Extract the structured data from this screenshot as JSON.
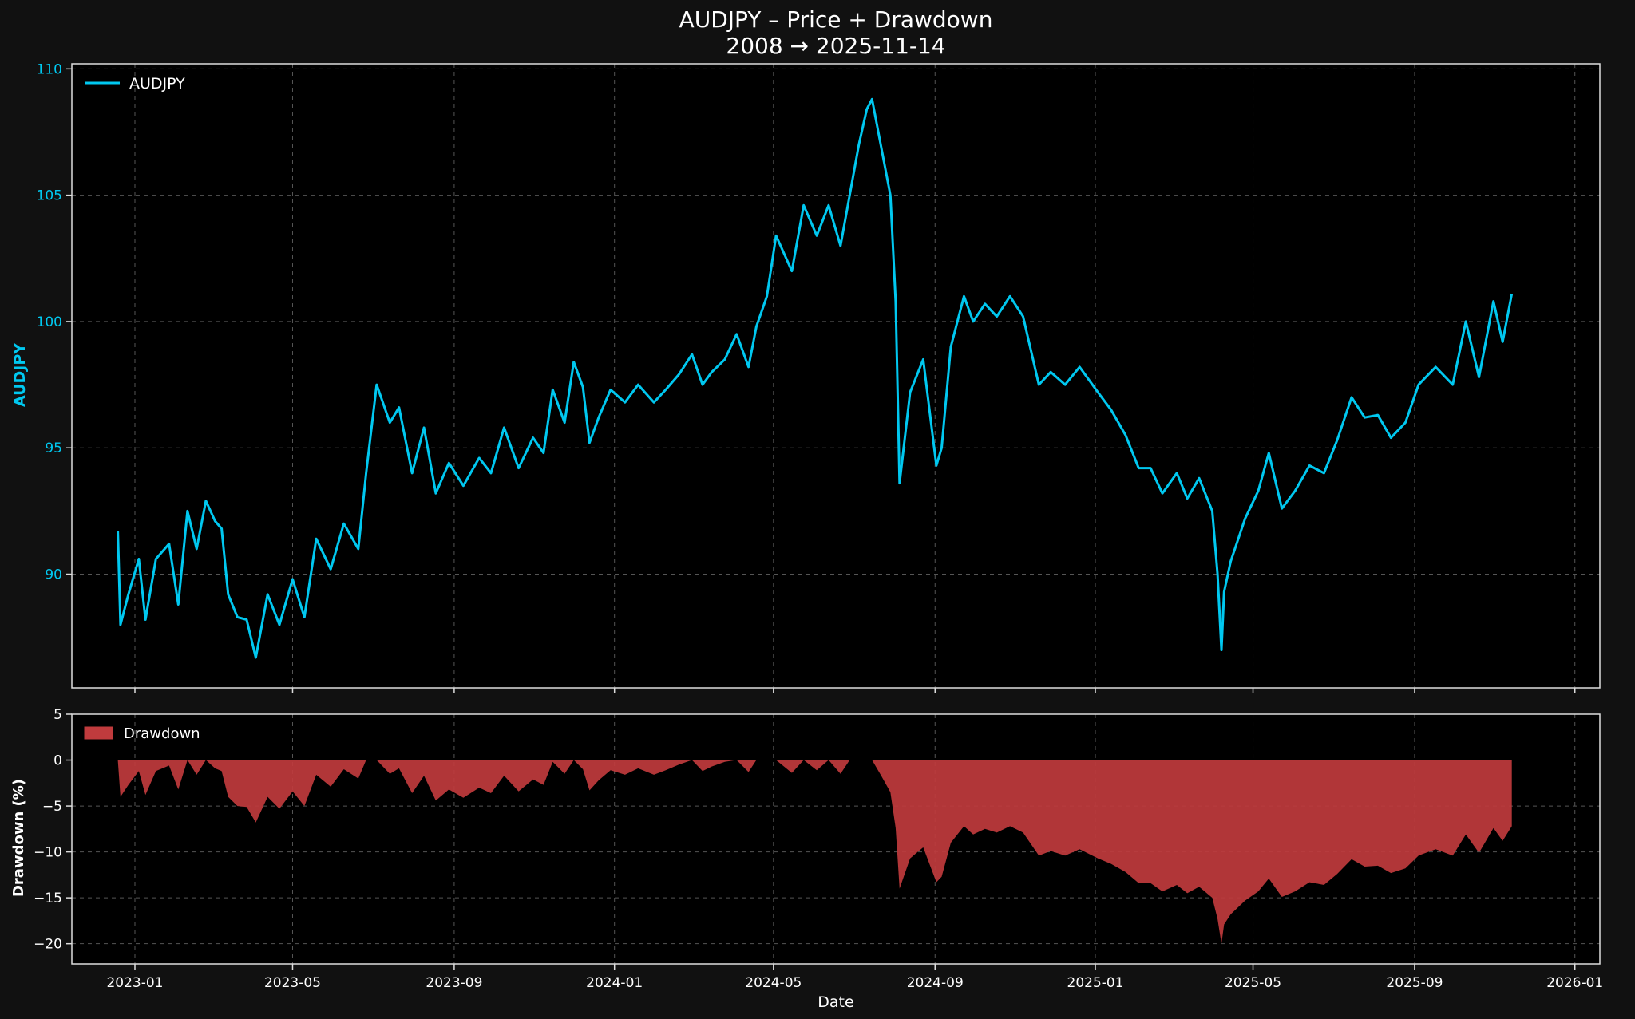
{
  "figure": {
    "title_line1": "AUDJPY – Price + Drawdown",
    "title_line2": "2008 → 2025-11-14",
    "background": "#111111",
    "axes_background": "#000000",
    "price_color": "#00c8f0",
    "drawdown_fill": "#c03b3d",
    "tick_text_color": "#ffffff",
    "grid": true
  },
  "chart_data": [
    {
      "type": "line",
      "title": "",
      "xlabel": "",
      "ylabel": "AUDJPY",
      "ylim": [
        85.5,
        110.2
      ],
      "yticks": [
        90,
        95,
        100,
        105,
        110
      ],
      "legend": {
        "entries": [
          "AUDJPY"
        ],
        "placement": "top-left"
      },
      "series": [
        {
          "name": "AUDJPY",
          "x": [
            "2022-12-19",
            "2022-12-21",
            "2022-12-27",
            "2023-01-04",
            "2023-01-09",
            "2023-01-17",
            "2023-01-27",
            "2023-02-03",
            "2023-02-10",
            "2023-02-17",
            "2023-02-24",
            "2023-03-03",
            "2023-03-08",
            "2023-03-13",
            "2023-03-20",
            "2023-03-27",
            "2023-04-03",
            "2023-04-12",
            "2023-04-21",
            "2023-05-01",
            "2023-05-10",
            "2023-05-19",
            "2023-05-30",
            "2023-06-09",
            "2023-06-20",
            "2023-06-26",
            "2023-07-04",
            "2023-07-14",
            "2023-07-21",
            "2023-07-31",
            "2023-08-09",
            "2023-08-18",
            "2023-08-28",
            "2023-09-08",
            "2023-09-20",
            "2023-09-29",
            "2023-10-09",
            "2023-10-20",
            "2023-10-31",
            "2023-11-08",
            "2023-11-15",
            "2023-11-24",
            "2023-12-01",
            "2023-12-08",
            "2023-12-13",
            "2023-12-20",
            "2023-12-29",
            "2024-01-09",
            "2024-01-19",
            "2024-01-31",
            "2024-02-09",
            "2024-02-19",
            "2024-02-29",
            "2024-03-08",
            "2024-03-15",
            "2024-03-25",
            "2024-04-03",
            "2024-04-12",
            "2024-04-18",
            "2024-04-26",
            "2024-05-03",
            "2024-05-15",
            "2024-05-24",
            "2024-06-03",
            "2024-06-12",
            "2024-06-21",
            "2024-06-28",
            "2024-07-05",
            "2024-07-11",
            "2024-07-15",
            "2024-07-22",
            "2024-07-29",
            "2024-08-02",
            "2024-08-05",
            "2024-08-13",
            "2024-08-23",
            "2024-09-02",
            "2024-09-06",
            "2024-09-13",
            "2024-09-23",
            "2024-09-30",
            "2024-10-09",
            "2024-10-18",
            "2024-10-28",
            "2024-11-07",
            "2024-11-19",
            "2024-11-28",
            "2024-12-09",
            "2024-12-20",
            "2025-01-03",
            "2025-01-13",
            "2025-01-24",
            "2025-02-03",
            "2025-02-12",
            "2025-02-21",
            "2025-03-04",
            "2025-03-12",
            "2025-03-21",
            "2025-03-31",
            "2025-04-04",
            "2025-04-07",
            "2025-04-09",
            "2025-04-14",
            "2025-04-25",
            "2025-05-05",
            "2025-05-13",
            "2025-05-23",
            "2025-06-02",
            "2025-06-13",
            "2025-06-24",
            "2025-07-04",
            "2025-07-15",
            "2025-07-25",
            "2025-08-04",
            "2025-08-14",
            "2025-08-25",
            "2025-09-04",
            "2025-09-17",
            "2025-09-30",
            "2025-10-10",
            "2025-10-20",
            "2025-10-31",
            "2025-11-07",
            "2025-11-14"
          ],
          "y": [
            91.7,
            88.0,
            89.2,
            90.6,
            88.2,
            90.6,
            91.2,
            88.8,
            92.5,
            91.0,
            92.9,
            92.1,
            91.8,
            89.2,
            88.3,
            88.2,
            86.7,
            89.2,
            88.0,
            89.8,
            88.3,
            91.4,
            90.2,
            92.0,
            91.0,
            94.0,
            97.5,
            96.0,
            96.6,
            94.0,
            95.8,
            93.2,
            94.4,
            93.5,
            94.6,
            94.0,
            95.8,
            94.2,
            95.4,
            94.8,
            97.3,
            96.0,
            98.4,
            97.4,
            95.2,
            96.2,
            97.3,
            96.8,
            97.5,
            96.8,
            97.3,
            97.9,
            98.7,
            97.5,
            98.0,
            98.5,
            99.5,
            98.2,
            99.8,
            101.0,
            103.4,
            102.0,
            104.6,
            103.4,
            104.6,
            103.0,
            105.0,
            107.0,
            108.4,
            108.8,
            106.9,
            105.0,
            100.8,
            93.6,
            97.2,
            98.5,
            94.3,
            95.0,
            99.0,
            101.0,
            100.0,
            100.7,
            100.2,
            101.0,
            100.2,
            97.5,
            98.0,
            97.5,
            98.2,
            97.2,
            96.5,
            95.5,
            94.2,
            94.2,
            93.2,
            94.0,
            93.0,
            93.8,
            92.5,
            90.0,
            87.0,
            89.3,
            90.5,
            92.2,
            93.3,
            94.8,
            92.6,
            93.3,
            94.3,
            94.0,
            95.3,
            97.0,
            96.2,
            96.3,
            95.4,
            96.0,
            97.5,
            98.2,
            97.5,
            100.0,
            97.8,
            100.8,
            99.2,
            101.1
          ]
        }
      ]
    },
    {
      "type": "area",
      "title": "",
      "xlabel": "Date",
      "ylabel": "Drawdown (%)",
      "ylim": [
        -22.2,
        5
      ],
      "yticks": [
        5,
        0,
        -5,
        -10,
        -15,
        -20
      ],
      "xticks": [
        "2023-01",
        "2023-05",
        "2023-09",
        "2024-01",
        "2024-05",
        "2024-09",
        "2025-01",
        "2025-05",
        "2025-09",
        "2026-01"
      ],
      "legend": {
        "entries": [
          "Drawdown"
        ],
        "placement": "top-left"
      },
      "series": [
        {
          "name": "Drawdown",
          "x": [
            "2022-12-19",
            "2022-12-21",
            "2022-12-27",
            "2023-01-04",
            "2023-01-09",
            "2023-01-17",
            "2023-01-27",
            "2023-02-03",
            "2023-02-10",
            "2023-02-17",
            "2023-02-24",
            "2023-03-03",
            "2023-03-08",
            "2023-03-13",
            "2023-03-20",
            "2023-03-27",
            "2023-04-03",
            "2023-04-12",
            "2023-04-21",
            "2023-05-01",
            "2023-05-10",
            "2023-05-19",
            "2023-05-30",
            "2023-06-09",
            "2023-06-20",
            "2023-06-26",
            "2023-07-04",
            "2023-07-14",
            "2023-07-21",
            "2023-07-31",
            "2023-08-09",
            "2023-08-18",
            "2023-08-28",
            "2023-09-08",
            "2023-09-20",
            "2023-09-29",
            "2023-10-09",
            "2023-10-20",
            "2023-10-31",
            "2023-11-08",
            "2023-11-15",
            "2023-11-24",
            "2023-12-01",
            "2023-12-08",
            "2023-12-13",
            "2023-12-20",
            "2023-12-29",
            "2024-01-09",
            "2024-01-19",
            "2024-01-31",
            "2024-02-09",
            "2024-02-19",
            "2024-02-29",
            "2024-03-08",
            "2024-03-15",
            "2024-03-25",
            "2024-04-03",
            "2024-04-12",
            "2024-04-18",
            "2024-04-26",
            "2024-05-03",
            "2024-05-15",
            "2024-05-24",
            "2024-06-03",
            "2024-06-12",
            "2024-06-21",
            "2024-06-28",
            "2024-07-05",
            "2024-07-11",
            "2024-07-15",
            "2024-07-22",
            "2024-07-29",
            "2024-08-02",
            "2024-08-05",
            "2024-08-13",
            "2024-08-23",
            "2024-09-02",
            "2024-09-06",
            "2024-09-13",
            "2024-09-23",
            "2024-09-30",
            "2024-10-09",
            "2024-10-18",
            "2024-10-28",
            "2024-11-07",
            "2024-11-19",
            "2024-11-28",
            "2024-12-09",
            "2024-12-20",
            "2025-01-03",
            "2025-01-13",
            "2025-01-24",
            "2025-02-03",
            "2025-02-12",
            "2025-02-21",
            "2025-03-04",
            "2025-03-12",
            "2025-03-21",
            "2025-03-31",
            "2025-04-04",
            "2025-04-07",
            "2025-04-09",
            "2025-04-14",
            "2025-04-25",
            "2025-05-05",
            "2025-05-13",
            "2025-05-23",
            "2025-06-02",
            "2025-06-13",
            "2025-06-24",
            "2025-07-04",
            "2025-07-15",
            "2025-07-25",
            "2025-08-04",
            "2025-08-14",
            "2025-08-25",
            "2025-09-04",
            "2025-09-17",
            "2025-09-30",
            "2025-10-10",
            "2025-10-20",
            "2025-10-31",
            "2025-11-07",
            "2025-11-14"
          ],
          "values": [
            0,
            -4.0,
            -2.7,
            -1.2,
            -3.8,
            -1.2,
            -0.6,
            -3.2,
            0,
            -1.6,
            0,
            -0.9,
            -1.2,
            -4.0,
            -5.0,
            -5.1,
            -6.8,
            -4.0,
            -5.3,
            -3.4,
            -5.0,
            -1.6,
            -2.9,
            -1.0,
            -2.0,
            0,
            0,
            -1.5,
            -0.9,
            -3.6,
            -1.7,
            -4.4,
            -3.2,
            -4.1,
            -3.0,
            -3.6,
            -1.7,
            -3.4,
            -2.1,
            -2.7,
            -0.2,
            -1.5,
            0,
            -1.0,
            -3.3,
            -2.2,
            -1.1,
            -1.6,
            -0.9,
            -1.6,
            -1.1,
            -0.5,
            0,
            -1.2,
            -0.7,
            -0.2,
            0,
            -1.3,
            0,
            0,
            0,
            -1.4,
            0,
            -1.1,
            0,
            -1.5,
            0,
            0,
            0,
            0,
            -1.7,
            -3.5,
            -7.4,
            -14.0,
            -10.7,
            -9.5,
            -13.3,
            -12.7,
            -9.0,
            -7.2,
            -8.1,
            -7.5,
            -7.9,
            -7.2,
            -7.9,
            -10.4,
            -9.9,
            -10.4,
            -9.7,
            -10.7,
            -11.3,
            -12.2,
            -13.4,
            -13.4,
            -14.3,
            -13.6,
            -14.5,
            -13.8,
            -15.0,
            -17.3,
            -20.0,
            -17.9,
            -16.8,
            -15.3,
            -14.3,
            -12.9,
            -14.9,
            -14.3,
            -13.3,
            -13.6,
            -12.4,
            -10.8,
            -11.6,
            -11.5,
            -12.3,
            -11.8,
            -10.4,
            -9.7,
            -10.4,
            -8.1,
            -10.1,
            -7.4,
            -8.8,
            -7.2
          ]
        }
      ]
    }
  ]
}
